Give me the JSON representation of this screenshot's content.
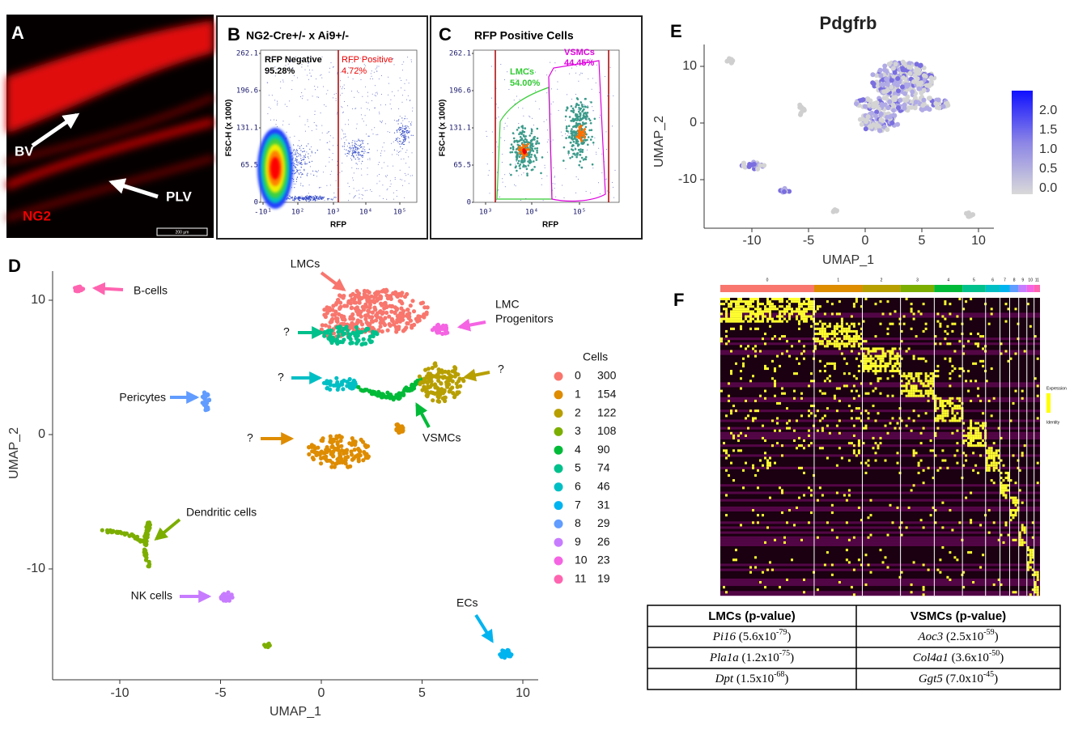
{
  "panels": {
    "A": {
      "letter": "A",
      "vessel": "BV",
      "lymph": "PLV",
      "marker": "NG2",
      "scale": "200 µm"
    },
    "B": {
      "letter": "B",
      "title": "NG2-Cre+/- x Ai9+/-",
      "xlabel": "RFP",
      "ylabel": "FSC-H (x 1000)",
      "yticks": [
        "0",
        "65.5",
        "131.1",
        "196.6",
        "262.1"
      ],
      "xticks": [
        "-10¹",
        "10²",
        "10³",
        "10⁴",
        "10⁵"
      ],
      "gates": [
        {
          "name": "RFP Negative",
          "percent": "95.28%"
        },
        {
          "name": "RFP Positive",
          "percent": "4.72%"
        }
      ]
    },
    "C": {
      "letter": "C",
      "title": "RFP Positive Cells",
      "xlabel": "RFP",
      "ylabel": "FSC-H (x 1000)",
      "yticks": [
        "0",
        "65.5",
        "131.1",
        "196.6",
        "262.1"
      ],
      "xticks": [
        "10³",
        "10⁴",
        "10⁵"
      ],
      "gates": [
        {
          "name": "LMCs",
          "percent": "54.00%"
        },
        {
          "name": "VSMCs",
          "percent": "44.45%"
        }
      ]
    },
    "D": {
      "letter": "D",
      "xlabel": "UMAP_1",
      "ylabel": "UMAP_2",
      "xticks": [
        -10,
        -5,
        0,
        5,
        10
      ],
      "yticks": [
        10,
        0,
        -10
      ],
      "legend_title": "Cells",
      "clusters": [
        {
          "id": 0,
          "cells": 300,
          "color": "#F8766D"
        },
        {
          "id": 1,
          "cells": 154,
          "color": "#DE8C00"
        },
        {
          "id": 2,
          "cells": 122,
          "color": "#B79F00"
        },
        {
          "id": 3,
          "cells": 108,
          "color": "#7CAE00"
        },
        {
          "id": 4,
          "cells": 90,
          "color": "#00BA38"
        },
        {
          "id": 5,
          "cells": 74,
          "color": "#00C08B"
        },
        {
          "id": 6,
          "cells": 46,
          "color": "#00BFC4"
        },
        {
          "id": 7,
          "cells": 31,
          "color": "#00B4F0"
        },
        {
          "id": 8,
          "cells": 29,
          "color": "#619CFF"
        },
        {
          "id": 9,
          "cells": 26,
          "color": "#C77CFF"
        },
        {
          "id": 10,
          "cells": 23,
          "color": "#F564E3"
        },
        {
          "id": 11,
          "cells": 19,
          "color": "#FF64B0"
        }
      ],
      "annotations": {
        "lmc": "LMCs",
        "progenitors": [
          "LMC",
          "Progenitors"
        ],
        "unknown": "?",
        "pericytes": "Pericytes",
        "vsmc": "VSMCs",
        "dendritic": "Dendritic cells",
        "nk": "NK cells",
        "ec": "ECs",
        "b": "B-cells"
      }
    },
    "E": {
      "letter": "E",
      "title": "Pdgfrb",
      "xlabel": "UMAP_1",
      "ylabel": "UMAP_2",
      "xticks": [
        -10,
        -5,
        0,
        5,
        10
      ],
      "yticks": [
        10,
        0,
        -10
      ],
      "colorbar": [
        "2.0",
        "1.5",
        "1.0",
        "0.5",
        "0.0"
      ]
    },
    "F": {
      "letter": "F",
      "legend": [
        "Expression",
        "Identity"
      ]
    }
  },
  "table": {
    "headers": [
      "LMCs (p-value)",
      "VSMCs (p-value)"
    ],
    "rows": [
      [
        {
          "gene": "Pi16",
          "p": " (5.6x10",
          "exp": "-79",
          "close": ")"
        },
        {
          "gene": "Aoc3",
          "p": " (2.5x10",
          "exp": "-59",
          "close": ")"
        }
      ],
      [
        {
          "gene": "Pla1a",
          "p": " (1.2x10",
          "exp": "-75",
          "close": ")"
        },
        {
          "gene": "Col4a1",
          "p": " (3.6x10",
          "exp": "-50",
          "close": ")"
        }
      ],
      [
        {
          "gene": "Dpt",
          "p": " (1.5x10",
          "exp": "-68",
          "close": ")"
        },
        {
          "gene": "Ggt5",
          "p": " (7.0x10",
          "exp": "-45",
          "close": ")"
        }
      ]
    ]
  }
}
